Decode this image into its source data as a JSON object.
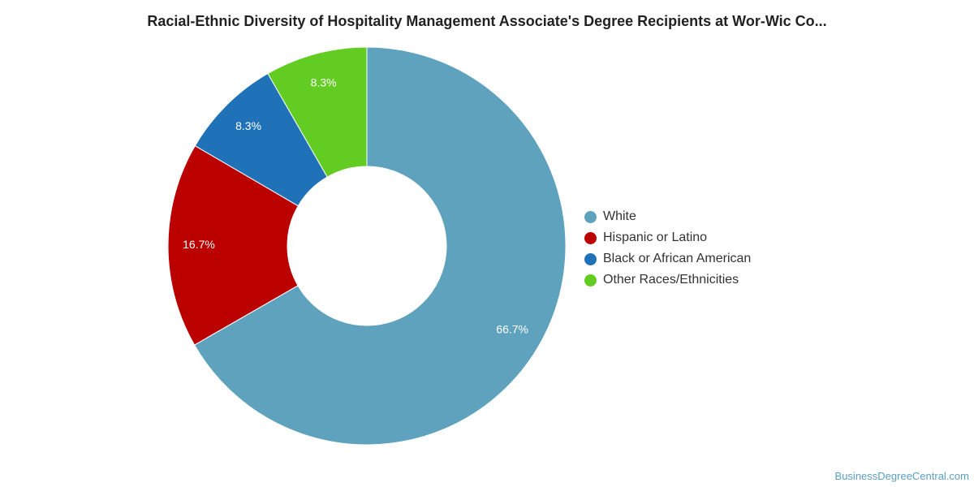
{
  "chart_data": {
    "type": "pie",
    "title": "Racial-Ethnic Diversity of Hospitality Management Associate's Degree Recipients at Wor-Wic Co...",
    "categories": [
      "White",
      "Hispanic or Latino",
      "Black or African American",
      "Other Races/Ethnicities"
    ],
    "values": [
      66.7,
      16.7,
      8.3,
      8.3
    ],
    "labels": [
      "66.7%",
      "16.7%",
      "8.3%",
      "8.3%"
    ],
    "colors": [
      "#5ea2be",
      "#bb0000",
      "#1f72b8",
      "#62cc22"
    ],
    "donut": true,
    "legend_position": "right"
  },
  "watermark": "BusinessDegreeCentral.com"
}
